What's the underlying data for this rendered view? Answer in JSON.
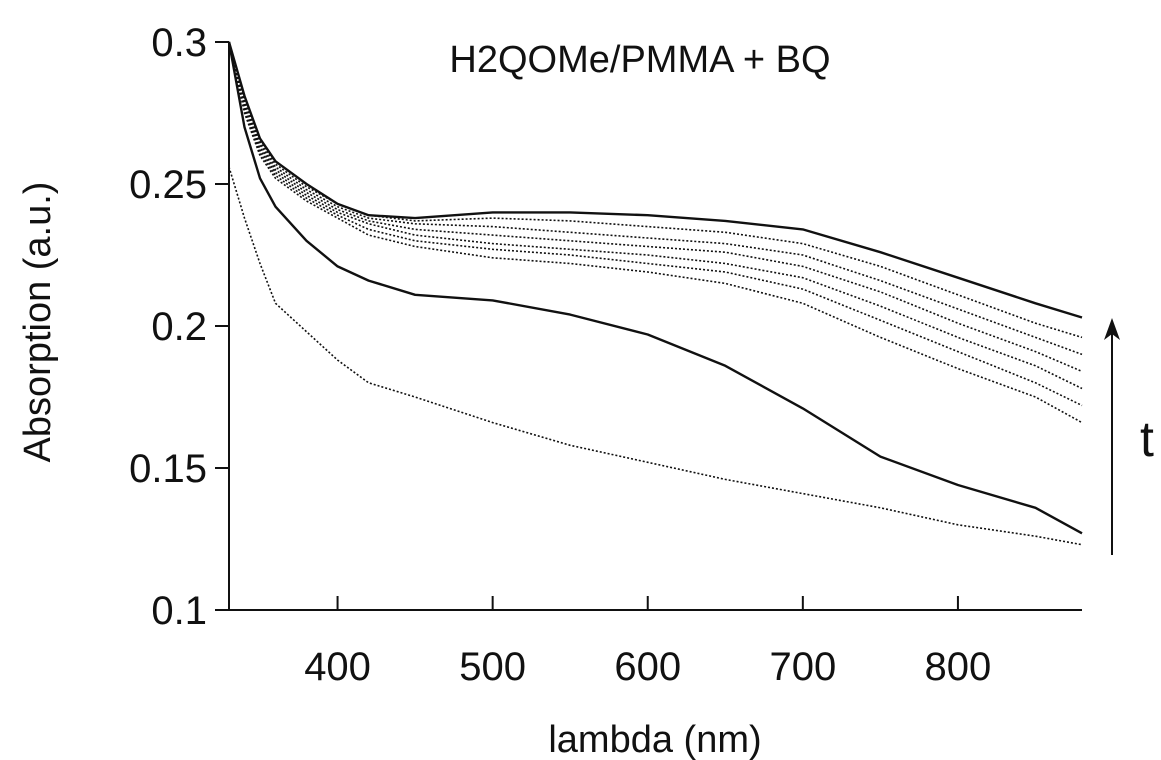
{
  "chart_data": {
    "type": "line",
    "title": "H2QOMe/PMMA + BQ",
    "xlabel": "lambda (nm)",
    "ylabel": "Absorption (a.u.)",
    "xlim": [
      330,
      880
    ],
    "ylim": [
      0.1,
      0.3
    ],
    "xticks": [
      400,
      500,
      600,
      700,
      800
    ],
    "xtick_labels": [
      "400",
      "500",
      "600",
      "700",
      "800"
    ],
    "yticks": [
      0.1,
      0.15,
      0.2,
      0.25,
      0.3
    ],
    "ytick_labels": [
      "0.1",
      "0.15",
      "0.2",
      "0.25",
      "0.3"
    ],
    "grid": false,
    "annotation": {
      "text": "t",
      "description": "time arrow pointing upward across series"
    },
    "x": [
      330,
      340,
      350,
      360,
      380,
      400,
      420,
      450,
      500,
      550,
      600,
      650,
      700,
      750,
      800,
      850,
      880
    ],
    "series": [
      {
        "values": [
          0.256,
          0.238,
          0.222,
          0.208,
          0.198,
          0.188,
          0.18,
          0.175,
          0.166,
          0.158,
          0.152,
          0.146,
          0.141,
          0.136,
          0.13,
          0.126,
          0.123
        ]
      },
      {
        "values": [
          0.3,
          0.27,
          0.252,
          0.242,
          0.23,
          0.221,
          0.216,
          0.211,
          0.209,
          0.204,
          0.197,
          0.186,
          0.171,
          0.154,
          0.144,
          0.136,
          0.127
        ]
      },
      {
        "values": [
          0.3,
          0.275,
          0.26,
          0.252,
          0.244,
          0.238,
          0.232,
          0.228,
          0.224,
          0.222,
          0.219,
          0.215,
          0.208,
          0.196,
          0.185,
          0.175,
          0.166
        ]
      },
      {
        "values": [
          0.3,
          0.276,
          0.261,
          0.253,
          0.245,
          0.239,
          0.234,
          0.23,
          0.227,
          0.225,
          0.222,
          0.219,
          0.213,
          0.202,
          0.191,
          0.18,
          0.172
        ]
      },
      {
        "values": [
          0.3,
          0.277,
          0.262,
          0.254,
          0.246,
          0.24,
          0.236,
          0.232,
          0.229,
          0.227,
          0.225,
          0.222,
          0.217,
          0.207,
          0.196,
          0.186,
          0.178
        ]
      },
      {
        "values": [
          0.3,
          0.278,
          0.263,
          0.255,
          0.247,
          0.241,
          0.237,
          0.234,
          0.232,
          0.23,
          0.228,
          0.226,
          0.221,
          0.212,
          0.201,
          0.191,
          0.184
        ]
      },
      {
        "values": [
          0.3,
          0.279,
          0.264,
          0.256,
          0.248,
          0.242,
          0.238,
          0.236,
          0.235,
          0.233,
          0.231,
          0.229,
          0.225,
          0.216,
          0.206,
          0.196,
          0.19
        ]
      },
      {
        "values": [
          0.3,
          0.28,
          0.265,
          0.257,
          0.249,
          0.243,
          0.239,
          0.237,
          0.238,
          0.237,
          0.235,
          0.233,
          0.229,
          0.221,
          0.211,
          0.201,
          0.196
        ]
      },
      {
        "values": [
          0.3,
          0.281,
          0.266,
          0.258,
          0.25,
          0.243,
          0.239,
          0.238,
          0.24,
          0.24,
          0.239,
          0.237,
          0.234,
          0.226,
          0.217,
          0.208,
          0.203
        ]
      }
    ]
  }
}
